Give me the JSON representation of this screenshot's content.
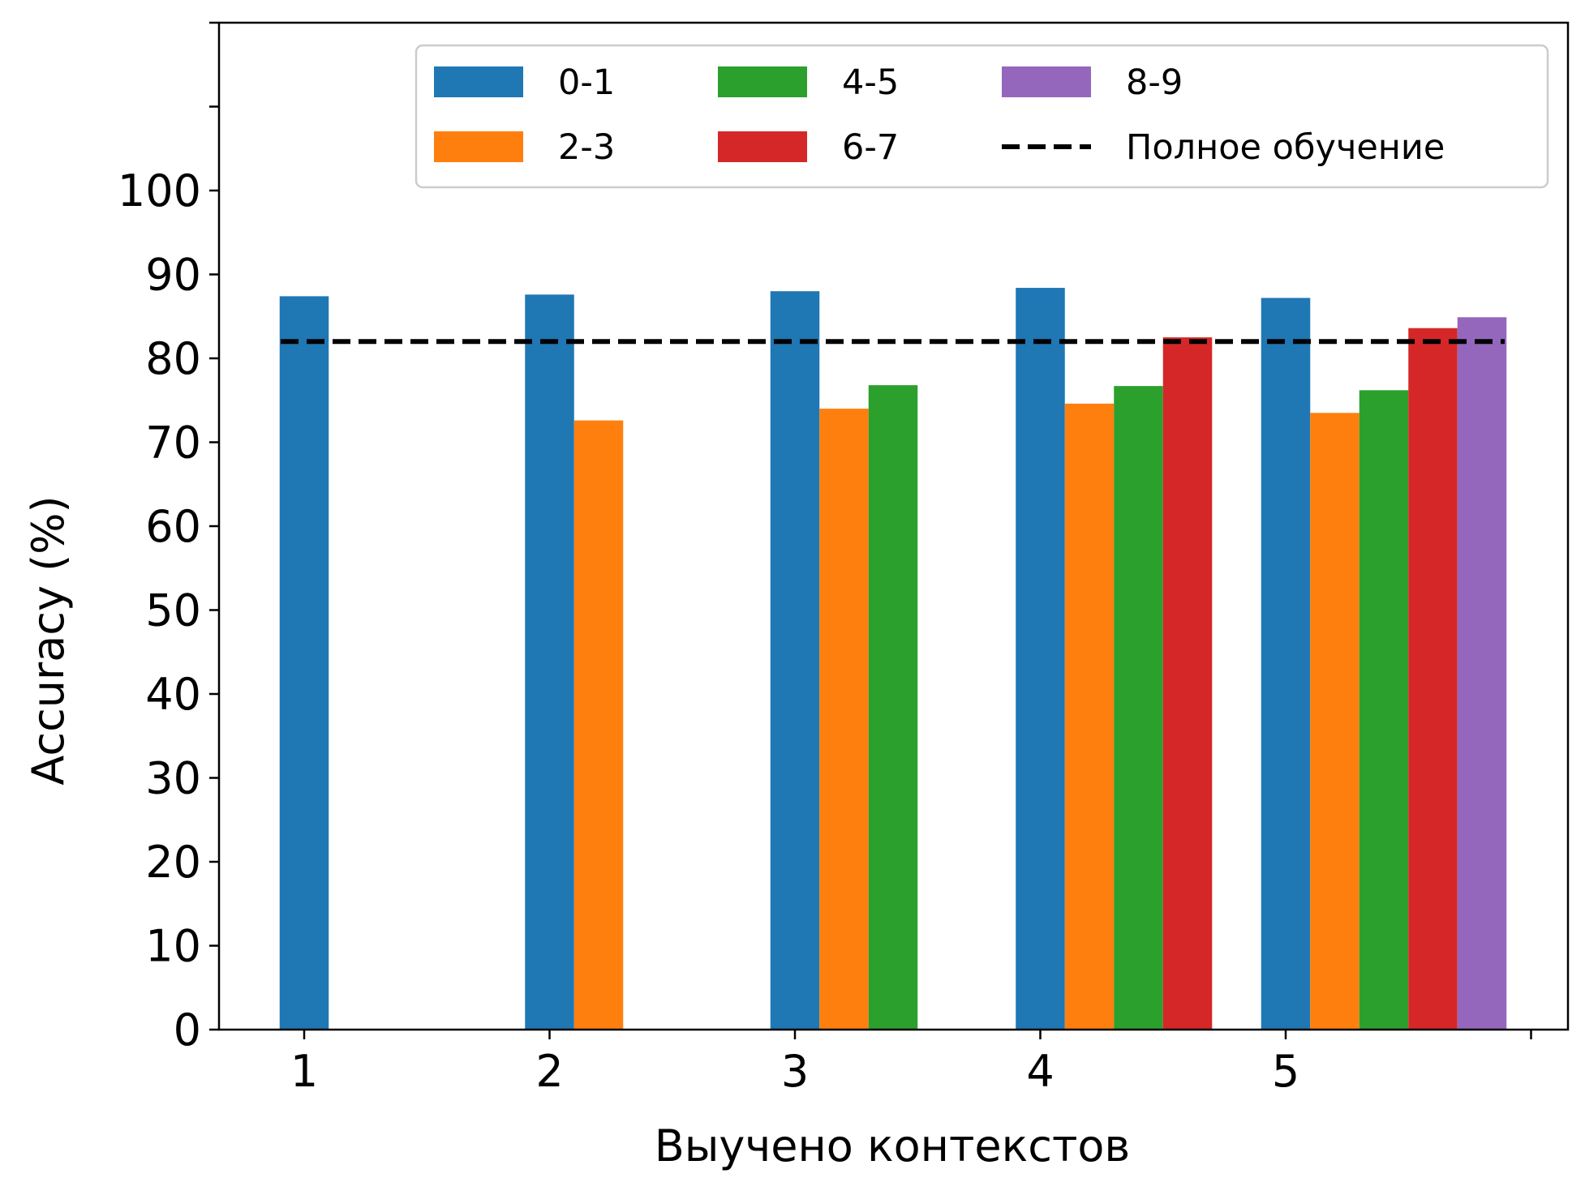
{
  "chart_data": {
    "type": "bar",
    "xlabel": "Выучено контекстов",
    "ylabel": "Accuracy (%)",
    "categories": [
      "1",
      "2",
      "3",
      "4",
      "5"
    ],
    "ylim": [
      0,
      120
    ],
    "yticks": [
      0,
      10,
      20,
      30,
      40,
      50,
      60,
      70,
      80,
      90,
      100
    ],
    "series": [
      {
        "name": "0-1",
        "color": "#1f77b4",
        "values": [
          87.4,
          87.6,
          88.0,
          88.4,
          87.2
        ]
      },
      {
        "name": "2-3",
        "color": "#ff7f0e",
        "values": [
          null,
          72.6,
          74.0,
          74.6,
          73.5
        ]
      },
      {
        "name": "4-5",
        "color": "#2ca02c",
        "values": [
          null,
          null,
          76.8,
          76.7,
          76.2
        ]
      },
      {
        "name": "6-7",
        "color": "#d62728",
        "values": [
          null,
          null,
          null,
          82.5,
          83.6
        ]
      },
      {
        "name": "8-9",
        "color": "#9467bd",
        "values": [
          null,
          null,
          null,
          null,
          84.9
        ]
      }
    ],
    "reference_line": {
      "name": "Полное обучение",
      "value": 82.0,
      "style": "dashed",
      "color": "#000000"
    },
    "legend": {
      "position": "top-right",
      "columns": 3
    },
    "grid": false
  }
}
